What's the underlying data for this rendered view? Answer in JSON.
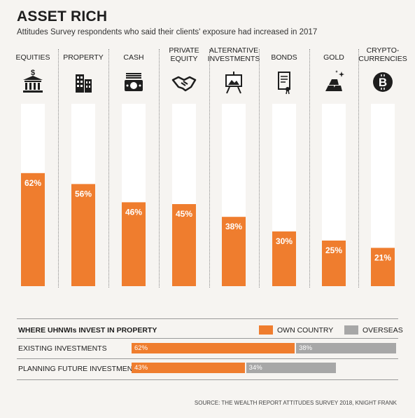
{
  "title": "ASSET RICH",
  "subtitle": "Attitudes Survey respondents who said their clients' exposure had increased in 2017",
  "colors": {
    "own_country": "#ef7d2e",
    "overseas": "#a7a7a7",
    "bar_track": "#ffffff",
    "page_bg": "#f6f4f1"
  },
  "chart_data": [
    {
      "type": "bar",
      "categories": [
        "EQUITIES",
        "PROPERTY",
        "CASH",
        "PRIVATE EQUITY",
        "ALTERNATIVE INVESTMENTS",
        "BONDS",
        "GOLD",
        "CRYPTO-CURRENCIES"
      ],
      "category_label_lines": [
        [
          "EQUITIES"
        ],
        [
          "PROPERTY"
        ],
        [
          "CASH"
        ],
        [
          "PRIVATE",
          "EQUITY"
        ],
        [
          "ALTERNATIVE",
          "INVESTMENTS"
        ],
        [
          "BONDS"
        ],
        [
          "GOLD"
        ],
        [
          "CRYPTO-",
          "CURRENCIES"
        ]
      ],
      "icons": [
        "bank-icon",
        "buildings-icon",
        "cash-icon",
        "handshake-icon",
        "easel-icon",
        "scroll-icon",
        "gold-bars-icon",
        "bitcoin-icon"
      ],
      "values": [
        62,
        56,
        46,
        45,
        38,
        30,
        25,
        21
      ],
      "value_labels": [
        "62%",
        "56%",
        "46%",
        "45%",
        "38%",
        "30%",
        "25%",
        "21%"
      ],
      "ylim": [
        0,
        100
      ]
    },
    {
      "type": "bar",
      "orientation": "horizontal",
      "title": "WHERE UHNWIs INVEST IN PROPERTY",
      "categories": [
        "EXISTING INVESTMENTS",
        "PLANNING FUTURE INVESTMENTS"
      ],
      "series": [
        {
          "name": "OWN COUNTRY",
          "values": [
            62,
            43
          ],
          "labels": [
            "62%",
            "43%"
          ]
        },
        {
          "name": "OVERSEAS",
          "values": [
            38,
            34
          ],
          "labels": [
            "38%",
            "34%"
          ]
        }
      ],
      "xlim": [
        0,
        100
      ]
    }
  ],
  "source": "SOURCE: THE WEALTH REPORT ATTITUDES SURVEY 2018, KNIGHT FRANK"
}
